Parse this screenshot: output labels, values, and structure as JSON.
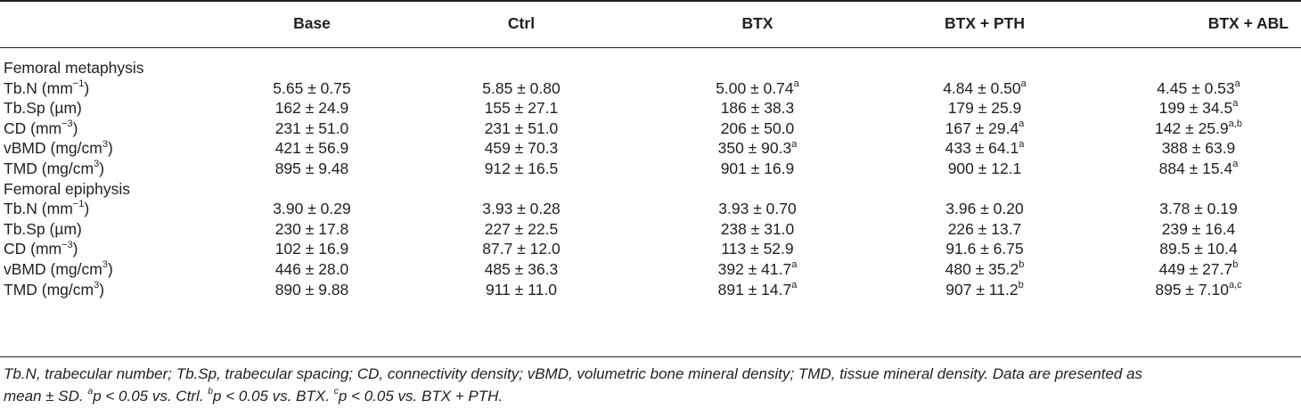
{
  "columns": [
    "",
    "Base",
    "Ctrl",
    "BTX",
    "BTX + PTH",
    "BTX + ABL"
  ],
  "sections": [
    {
      "title": "Femoral metaphysis",
      "rows": [
        {
          "label": "Tb.N (mm",
          "label_sup": "−1",
          "label_tail": ")",
          "cells": [
            {
              "v": "5.65 ± 0.75",
              "s": ""
            },
            {
              "v": "5.85 ± 0.80",
              "s": ""
            },
            {
              "v": "5.00 ± 0.74",
              "s": "a"
            },
            {
              "v": "4.84 ± 0.50",
              "s": "a"
            },
            {
              "v": "4.45 ± 0.53",
              "s": "a"
            }
          ]
        },
        {
          "label": "Tb.Sp (µm)",
          "label_sup": "",
          "label_tail": "",
          "cells": [
            {
              "v": "162 ± 24.9",
              "s": ""
            },
            {
              "v": "155 ± 27.1",
              "s": ""
            },
            {
              "v": "186 ± 38.3",
              "s": ""
            },
            {
              "v": "179 ± 25.9",
              "s": ""
            },
            {
              "v": "199 ± 34.5",
              "s": "a"
            }
          ]
        },
        {
          "label": "CD (mm",
          "label_sup": "−3",
          "label_tail": ")",
          "cells": [
            {
              "v": "231 ± 51.0",
              "s": ""
            },
            {
              "v": "231 ± 51.0",
              "s": ""
            },
            {
              "v": "206 ± 50.0",
              "s": ""
            },
            {
              "v": "167 ± 29.4",
              "s": "a"
            },
            {
              "v": "142 ± 25.9",
              "s": "a,b"
            }
          ]
        },
        {
          "label": "vBMD (mg/cm",
          "label_sup": "3",
          "label_tail": ")",
          "cells": [
            {
              "v": "421 ± 56.9",
              "s": ""
            },
            {
              "v": "459 ± 70.3",
              "s": ""
            },
            {
              "v": "350 ± 90.3",
              "s": "a"
            },
            {
              "v": "433 ± 64.1",
              "s": "a"
            },
            {
              "v": "388 ± 63.9",
              "s": ""
            }
          ]
        },
        {
          "label": "TMD (mg/cm",
          "label_sup": "3",
          "label_tail": ")",
          "cells": [
            {
              "v": "895 ± 9.48",
              "s": ""
            },
            {
              "v": "912 ± 16.5",
              "s": ""
            },
            {
              "v": "901 ± 16.9",
              "s": ""
            },
            {
              "v": "900 ± 12.1",
              "s": ""
            },
            {
              "v": "884 ± 15.4",
              "s": "a"
            }
          ]
        }
      ]
    },
    {
      "title": "Femoral epiphysis",
      "rows": [
        {
          "label": "Tb.N (mm",
          "label_sup": "−1",
          "label_tail": ")",
          "cells": [
            {
              "v": "3.90 ± 0.29",
              "s": ""
            },
            {
              "v": "3.93 ± 0.28",
              "s": ""
            },
            {
              "v": "3.93 ± 0.70",
              "s": ""
            },
            {
              "v": "3.96 ± 0.20",
              "s": ""
            },
            {
              "v": "3.78 ± 0.19",
              "s": ""
            }
          ]
        },
        {
          "label": "Tb.Sp (µm)",
          "label_sup": "",
          "label_tail": "",
          "cells": [
            {
              "v": "230 ± 17.8",
              "s": ""
            },
            {
              "v": "227 ± 22.5",
              "s": ""
            },
            {
              "v": "238 ± 31.0",
              "s": ""
            },
            {
              "v": "226 ± 13.7",
              "s": ""
            },
            {
              "v": "239 ± 16.4",
              "s": ""
            }
          ]
        },
        {
          "label": "CD (mm",
          "label_sup": "−3",
          "label_tail": ")",
          "cells": [
            {
              "v": "102 ± 16.9",
              "s": ""
            },
            {
              "v": "87.7 ± 12.0",
              "s": ""
            },
            {
              "v": "113 ± 52.9",
              "s": ""
            },
            {
              "v": "91.6 ± 6.75",
              "s": ""
            },
            {
              "v": "89.5 ± 10.4",
              "s": ""
            }
          ]
        },
        {
          "label": "vBMD (mg/cm",
          "label_sup": "3",
          "label_tail": ")",
          "cells": [
            {
              "v": "446 ± 28.0",
              "s": ""
            },
            {
              "v": "485 ± 36.3",
              "s": ""
            },
            {
              "v": "392 ± 41.7",
              "s": "a"
            },
            {
              "v": "480 ± 35.2",
              "s": "b"
            },
            {
              "v": "449 ± 27.7",
              "s": "b"
            }
          ]
        },
        {
          "label": "TMD (mg/cm",
          "label_sup": "3",
          "label_tail": ")",
          "cells": [
            {
              "v": "890 ± 9.88",
              "s": ""
            },
            {
              "v": "911 ± 11.0",
              "s": ""
            },
            {
              "v": "891 ± 14.7",
              "s": "a"
            },
            {
              "v": "907 ± 11.2",
              "s": "b"
            },
            {
              "v": "895 ± 7.10",
              "s": "a,c"
            }
          ]
        }
      ]
    }
  ],
  "footnote": {
    "line1": "Tb.N, trabecular number; Tb.Sp, trabecular spacing; CD, connectivity density; vBMD, volumetric bone mineral density; TMD, tissue mineral density. Data are presented as",
    "line2_start": "mean ± SD.",
    "notes": [
      {
        "sup": "a",
        "text": "p < 0.05 vs. Ctrl."
      },
      {
        "sup": "b",
        "text": "p < 0.05 vs. BTX."
      },
      {
        "sup": "c",
        "text": "p < 0.05 vs. BTX + PTH."
      }
    ]
  }
}
